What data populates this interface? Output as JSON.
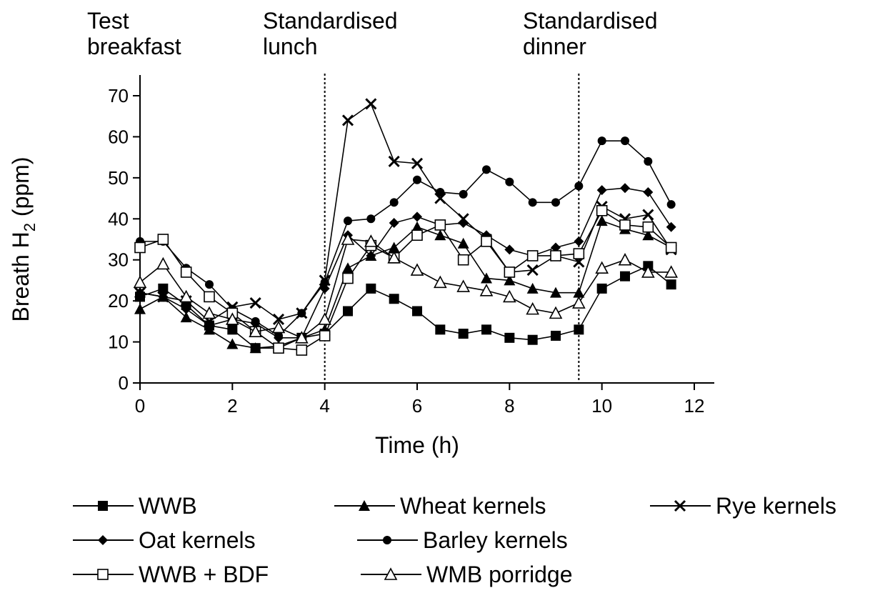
{
  "chart_data": {
    "type": "line",
    "xlabel": "Time (h)",
    "ylabel_main": "Breath H",
    "ylabel_sub": "2",
    "ylabel_unit": " (ppm)",
    "xlim": [
      0,
      12
    ],
    "ylim": [
      0,
      70
    ],
    "xticks": [
      0,
      2,
      4,
      6,
      8,
      10,
      12
    ],
    "yticks": [
      0,
      10,
      20,
      30,
      40,
      50,
      60,
      70
    ],
    "grid": false,
    "legend_position": "bottom",
    "meal_markers": [
      {
        "x": 0,
        "label_lines": [
          "Test",
          "breakfast"
        ],
        "dotted_line": false
      },
      {
        "x": 4,
        "label_lines": [
          "Standardised",
          "lunch"
        ],
        "dotted_line": true
      },
      {
        "x": 9.5,
        "label_lines": [
          "Standardised",
          "dinner"
        ],
        "dotted_line": true
      }
    ],
    "x": [
      0,
      0.5,
      1,
      1.5,
      2,
      2.5,
      3,
      3.5,
      4,
      4.5,
      5,
      5.5,
      6,
      6.5,
      7,
      7.5,
      8,
      8.5,
      9,
      9.5,
      10,
      10.5,
      11,
      11.5
    ],
    "series": [
      {
        "name": "WWB",
        "marker": "square-filled",
        "values": [
          21,
          23,
          19,
          14,
          13,
          8.5,
          8.5,
          11,
          12,
          17.5,
          23,
          20.5,
          17.5,
          13,
          12,
          13,
          11,
          10.5,
          11.5,
          13,
          23,
          26,
          28.5,
          24
        ]
      },
      {
        "name": "Wheat kernels",
        "marker": "triangle-filled",
        "values": [
          18,
          21,
          16,
          13,
          9.5,
          8.5,
          9,
          11,
          13,
          28,
          31,
          33,
          38,
          36,
          34,
          25.5,
          25,
          23,
          22,
          22,
          39.5,
          37.5,
          36,
          33
        ]
      },
      {
        "name": "Rye kernels",
        "marker": "x",
        "values": [
          22,
          21,
          20,
          15,
          18.5,
          19.5,
          15.5,
          17,
          25,
          64,
          68,
          54,
          53.5,
          45,
          40,
          35,
          27,
          27.5,
          31,
          29.5,
          43,
          40,
          41,
          32.5
        ]
      },
      {
        "name": "Oat kernels",
        "marker": "diamond-filled",
        "values": [
          22,
          21,
          18,
          14,
          15.5,
          14.5,
          11,
          11,
          23,
          36,
          31,
          39,
          40.5,
          38.5,
          39,
          36,
          32.5,
          31,
          33,
          34.5,
          47,
          47.5,
          46.5,
          38
        ]
      },
      {
        "name": "Barley kernels",
        "marker": "circle-filled",
        "values": [
          34.5,
          34.5,
          28,
          24,
          18,
          15,
          11.5,
          17,
          24.5,
          39.5,
          40,
          44,
          49.5,
          46.5,
          46,
          52,
          49,
          44,
          44,
          48,
          59,
          59,
          54,
          43.5
        ]
      },
      {
        "name": "WWB + BDF",
        "marker": "square-open",
        "values": [
          33,
          35,
          27,
          21,
          17,
          12.5,
          8.5,
          8,
          11.5,
          25.5,
          33.5,
          30.5,
          36,
          38.5,
          30,
          34.5,
          27,
          31,
          31,
          31.5,
          42,
          38.5,
          38,
          33
        ]
      },
      {
        "name": "WMB porridge",
        "marker": "triangle-open",
        "values": [
          24.5,
          29,
          21,
          17,
          15.5,
          12.5,
          13.5,
          11,
          15.5,
          35,
          34.5,
          30.5,
          27.5,
          24.5,
          23.5,
          22.5,
          21,
          18,
          17,
          19.5,
          28,
          30,
          27,
          27
        ]
      }
    ],
    "legend_rows": [
      [
        0,
        1,
        2
      ],
      [
        3,
        4
      ],
      [
        5,
        6
      ]
    ]
  }
}
